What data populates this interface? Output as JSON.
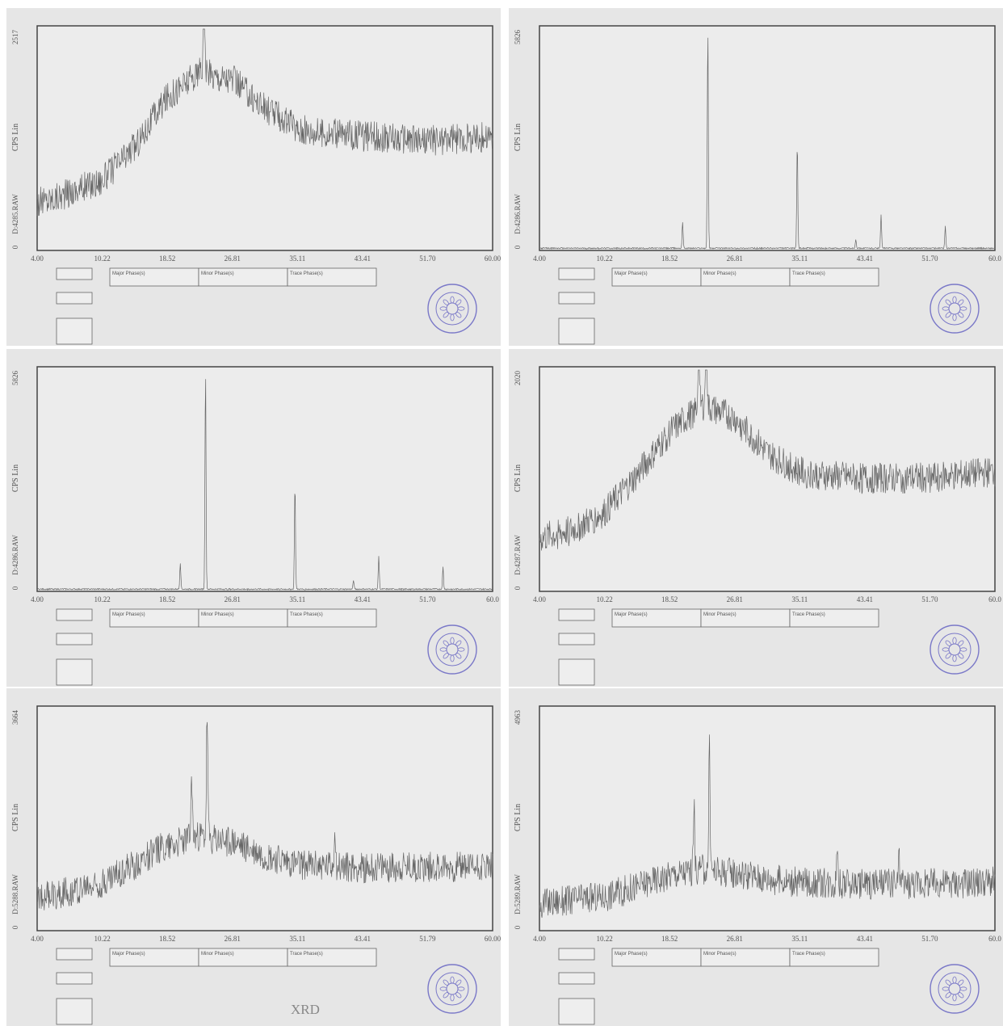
{
  "chart_data": [
    {
      "type": "line",
      "panel": 0,
      "ylabel": "CPS Lin",
      "file": "D:4285.RAW",
      "ymin": "0",
      "ymax": "2517",
      "xticks": [
        "4.00",
        "10.22",
        "18.52",
        "26.81",
        "35.11",
        "43.41",
        "51.70",
        "60.00"
      ],
      "profile": "amorphous",
      "hump": [
        24,
        2.2
      ],
      "peaks": [
        [
          24.5,
          0.95
        ]
      ],
      "boxes": {
        "major": "Major Phase(s)",
        "minor": "Minor Phase(s)",
        "trace": "Trace Phase(s)"
      },
      "x": [
        4,
        8,
        12,
        16,
        20,
        24,
        28,
        32,
        36,
        40,
        44,
        48,
        52,
        56,
        60
      ],
      "y": [
        540,
        660,
        800,
        1180,
        1750,
        2020,
        1950,
        1620,
        1380,
        1330,
        1300,
        1280,
        1250,
        1270,
        1290
      ]
    },
    {
      "type": "line",
      "panel": 1,
      "ylabel": "CPS Lin",
      "file": "D:4286.RAW",
      "ymin": "0",
      "ymax": "5826",
      "xticks": [
        "4.00",
        "10.22",
        "18.52",
        "26.81",
        "35.11",
        "43.41",
        "51.70",
        "60.0"
      ],
      "profile": "crystalline",
      "peaks": [
        [
          21.6,
          0.12
        ],
        [
          24.7,
          1.0
        ],
        [
          35.7,
          0.48
        ],
        [
          42.9,
          0.04
        ],
        [
          46.0,
          0.15
        ],
        [
          53.9,
          0.1
        ]
      ],
      "boxes": {
        "major": "Major Phase(s)",
        "minor": "Minor Phase(s)",
        "trace": "Trace Phase(s)"
      },
      "x": [
        21.6,
        24.7,
        35.7,
        42.9,
        46.0,
        53.9
      ],
      "y": [
        700,
        5826,
        2800,
        250,
        880,
        580
      ]
    },
    {
      "type": "line",
      "panel": 2,
      "ylabel": "CPS Lin",
      "file": "D:4286.RAW",
      "ymin": "0",
      "ymax": "5826",
      "xticks": [
        "4.00",
        "10.22",
        "18.52",
        "26.81",
        "35.11",
        "43.41",
        "51.70",
        "60.0"
      ],
      "profile": "crystalline",
      "peaks": [
        [
          21.6,
          0.12
        ],
        [
          24.7,
          1.0
        ],
        [
          35.7,
          0.48
        ],
        [
          42.9,
          0.04
        ],
        [
          46.0,
          0.15
        ],
        [
          53.9,
          0.1
        ]
      ],
      "boxes": {
        "major": "Major Phase(s)",
        "minor": "Minor Phase(s)",
        "trace": "Trace Phase(s)"
      },
      "x": [
        21.6,
        24.7,
        35.7,
        42.9,
        46.0,
        53.9
      ],
      "y": [
        700,
        5826,
        2800,
        250,
        880,
        580
      ]
    },
    {
      "type": "line",
      "panel": 3,
      "ylabel": "CPS Lin",
      "file": "D:4287.RAW",
      "ymin": "0",
      "ymax": "2020",
      "xticks": [
        "4.00",
        "10.22",
        "18.52",
        "26.81",
        "35.11",
        "43.41",
        "51.70",
        "60.0"
      ],
      "profile": "amorphous",
      "hump": [
        22,
        2.1
      ],
      "peaks": [
        [
          23.6,
          0.9
        ],
        [
          24.5,
          0.92
        ]
      ],
      "boxes": {
        "major": "Major Phase(s)",
        "minor": "Minor Phase(s)",
        "trace": "Trace Phase(s)"
      },
      "x": [
        4,
        8,
        12,
        16,
        20,
        24,
        28,
        32,
        36,
        40,
        44,
        48,
        52,
        56,
        60
      ],
      "y": [
        480,
        560,
        720,
        1060,
        1450,
        1700,
        1580,
        1260,
        1090,
        1050,
        1030,
        1030,
        1040,
        1060,
        1090
      ]
    },
    {
      "type": "line",
      "panel": 4,
      "ylabel": "CPS Lin",
      "file": "D:5288.RAW",
      "ymin": "0",
      "ymax": "3664",
      "xticks": [
        "4.00",
        "10.22",
        "18.52",
        "26.81",
        "35.11",
        "43.41",
        "51.79",
        "60.00"
      ],
      "profile": "amorphous",
      "hump": [
        24,
        2.2
      ],
      "peaks": [
        [
          23.0,
          0.52
        ],
        [
          24.9,
          1.0
        ],
        [
          40.6,
          0.35
        ]
      ],
      "boxes": {
        "major": "Major Phase(s)",
        "minor": "Minor Phase(s)",
        "trace": "Trace Phase(s)"
      },
      "x": [
        4,
        8,
        12,
        16,
        20,
        24,
        28,
        32,
        36,
        40,
        44,
        48,
        52,
        56,
        60
      ],
      "y": [
        560,
        650,
        790,
        1090,
        1430,
        1560,
        1460,
        1240,
        1090,
        1060,
        1040,
        1040,
        1050,
        1060,
        1070
      ]
    },
    {
      "type": "line",
      "panel": 5,
      "ylabel": "CPS Lin",
      "file": "D:5289.RAW",
      "ymin": "0",
      "ymax": "4963",
      "xticks": [
        "4.00",
        "10.22",
        "18.52",
        "26.81",
        "35.11",
        "43.41",
        "51.70",
        "60.0"
      ],
      "profile": "amorphous",
      "hump": [
        24,
        2.3
      ],
      "peaks": [
        [
          23.0,
          0.52
        ],
        [
          24.9,
          1.0
        ],
        [
          40.6,
          0.35
        ],
        [
          48.2,
          0.2
        ]
      ],
      "boxes": {
        "major": "Major Phase(s)",
        "minor": "Minor Phase(s)",
        "trace": "Trace Phase(s)"
      },
      "x": [
        4,
        8,
        12,
        16,
        20,
        24,
        28,
        32,
        36,
        40,
        44,
        48,
        52,
        56,
        60
      ],
      "y": [
        600,
        680,
        760,
        990,
        1240,
        1370,
        1300,
        1160,
        1080,
        1060,
        1050,
        1050,
        1060,
        1070,
        1090
      ]
    }
  ],
  "caption": "XRD"
}
